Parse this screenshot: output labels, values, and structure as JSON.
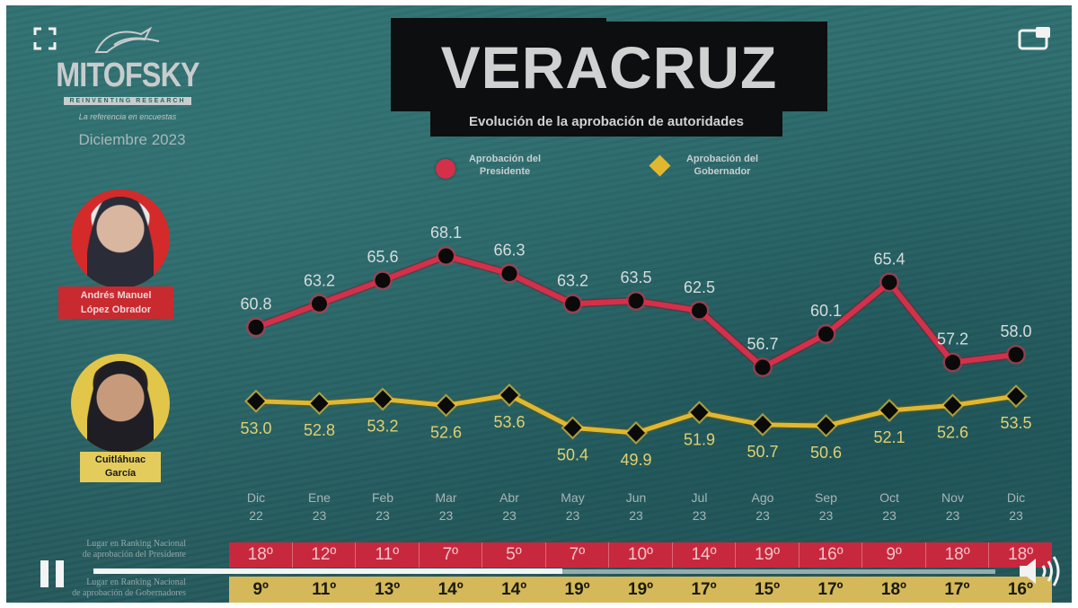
{
  "player": {
    "fullscreen_icon": "fullscreen-icon",
    "pip_icon": "picture-in-picture-icon",
    "pause_icon": "pause-icon",
    "volume_icon": "volume-icon",
    "progress_percent": 52
  },
  "brand": {
    "name": "MITOFSKY",
    "tagline": "REINVENTING RESEARCH",
    "slogan": "La referencia en encuestas",
    "date": "Diciembre 2023"
  },
  "header": {
    "title": "VERACRUZ",
    "subtitle": "Evolución de la aprobación de autoridades"
  },
  "legend": {
    "president": {
      "line1": "Aprobación del",
      "line2": "Presidente",
      "color": "#d4304a"
    },
    "governor": {
      "line1": "Aprobación del",
      "line2": "Gobernador",
      "color": "#e0b830"
    }
  },
  "people": {
    "president": {
      "line1": "Andrés Manuel",
      "line2": "López Obrador",
      "color": "#d42a2a"
    },
    "governor": {
      "line1": "Cuitláhuac",
      "line2": "García",
      "color": "#e2c64a"
    }
  },
  "months": [
    {
      "m": "Dic",
      "y": "22"
    },
    {
      "m": "Ene",
      "y": "23"
    },
    {
      "m": "Feb",
      "y": "23"
    },
    {
      "m": "Mar",
      "y": "23"
    },
    {
      "m": "Abr",
      "y": "23"
    },
    {
      "m": "May",
      "y": "23"
    },
    {
      "m": "Jun",
      "y": "23"
    },
    {
      "m": "Jul",
      "y": "23"
    },
    {
      "m": "Ago",
      "y": "23"
    },
    {
      "m": "Sep",
      "y": "23"
    },
    {
      "m": "Oct",
      "y": "23"
    },
    {
      "m": "Nov",
      "y": "23"
    },
    {
      "m": "Dic",
      "y": "23"
    }
  ],
  "ranking": {
    "president_label_1": "Lugar en Ranking Nacional",
    "president_label_2": "de aprobación del Presidente",
    "governor_label_1": "Lugar en Ranking Nacional",
    "governor_label_2": "de aprobación de Gobernadores",
    "president": [
      "18º",
      "12º",
      "11º",
      "7º",
      "5º",
      "7º",
      "10º",
      "14º",
      "19º",
      "16º",
      "9º",
      "18º",
      "18º"
    ],
    "governor": [
      "9º",
      "11º",
      "13º",
      "14º",
      "14º",
      "19º",
      "19º",
      "17º",
      "15º",
      "17º",
      "18º",
      "17º",
      "16º"
    ]
  },
  "chart_data": {
    "type": "line",
    "title": "VERACRUZ",
    "subtitle": "Evolución de la aprobación de autoridades",
    "xlabel": "",
    "ylabel": "",
    "categories": [
      "Dic 22",
      "Ene 23",
      "Feb 23",
      "Mar 23",
      "Abr 23",
      "May 23",
      "Jun 23",
      "Jul 23",
      "Ago 23",
      "Sep 23",
      "Oct 23",
      "Nov 23",
      "Dic 23"
    ],
    "series": [
      {
        "name": "Aprobación del Presidente",
        "color": "#d4304a",
        "marker": "circle",
        "values": [
          60.8,
          63.2,
          65.6,
          68.1,
          66.3,
          63.2,
          63.5,
          62.5,
          56.7,
          60.1,
          65.4,
          57.2,
          58.0
        ]
      },
      {
        "name": "Aprobación del Gobernador",
        "color": "#e0b830",
        "marker": "diamond",
        "values": [
          53.0,
          52.8,
          53.2,
          52.6,
          53.6,
          50.4,
          49.9,
          51.9,
          50.7,
          50.6,
          52.1,
          52.6,
          53.5
        ]
      }
    ],
    "legend_position": "top",
    "grid": false,
    "data_labels": true,
    "ranking_president": [
      18,
      12,
      11,
      7,
      5,
      7,
      10,
      14,
      19,
      16,
      9,
      18,
      18
    ],
    "ranking_governor": [
      9,
      11,
      13,
      14,
      14,
      19,
      19,
      17,
      15,
      17,
      18,
      17,
      16
    ]
  }
}
